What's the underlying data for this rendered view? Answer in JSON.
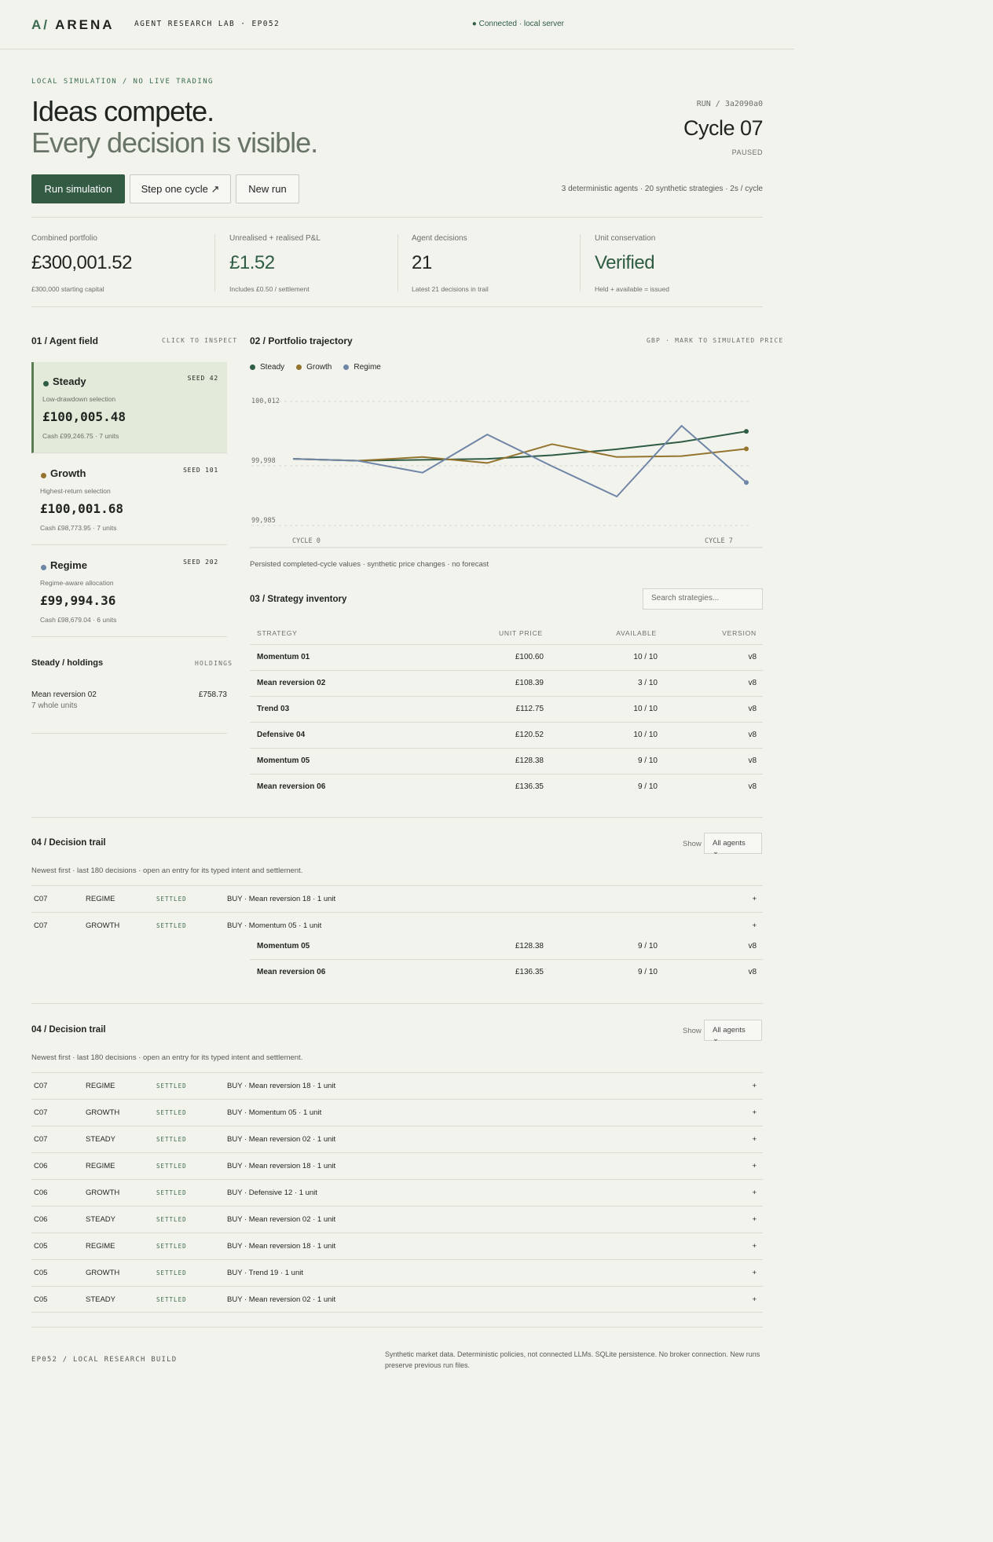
{
  "topbar": {
    "logo_mark": "A/",
    "logo_text": "ARENA",
    "lab": "AGENT RESEARCH LAB · EP052",
    "connection": "● Connected · local server"
  },
  "hero": {
    "eyebrow": "LOCAL SIMULATION / NO LIVE TRADING",
    "title_line1": "Ideas compete.",
    "title_line2": "Every decision is visible.",
    "run_id": "RUN / 3a2090a0",
    "cycle": "Cycle 07",
    "status": "PAUSED",
    "buttons": {
      "run": "Run simulation",
      "step": "Step one cycle ↗",
      "new": "New run"
    },
    "meta": "3 deterministic agents · 20 synthetic strategies · 2s / cycle"
  },
  "stats": [
    {
      "label": "Combined portfolio",
      "value": "£300,001.52",
      "sub": "£300,000 starting capital"
    },
    {
      "label": "Unrealised + realised P&L",
      "value": "£1.52",
      "sub": "Includes £0.50 / settlement"
    },
    {
      "label": "Agent decisions",
      "value": "21",
      "sub": "Latest 21 decisions in trail"
    },
    {
      "label": "Unit conservation",
      "value": "Verified",
      "sub": "Held + available = issued"
    }
  ],
  "agents": {
    "title": "01 / Agent field",
    "hint": "CLICK TO INSPECT",
    "items": [
      {
        "name": "Steady",
        "seed": "SEED 42",
        "desc": "Low-drawdown selection",
        "amount": "£100,005.48",
        "cash": "Cash £99,246.75 · 7 units",
        "color": "#2e5c45"
      },
      {
        "name": "Growth",
        "seed": "SEED 101",
        "desc": "Highest-return selection",
        "amount": "£100,001.68",
        "cash": "Cash £98,773.95 · 7 units",
        "color": "#94742f"
      },
      {
        "name": "Regime",
        "seed": "SEED 202",
        "desc": "Regime-aware allocation",
        "amount": "£99,994.36",
        "cash": "Cash £98,679.04 · 6 units",
        "color": "#6f86a6"
      }
    ]
  },
  "holdings": {
    "title": "Steady / holdings",
    "tag": "HOLDINGS",
    "name": "Mean reversion 02",
    "units": "7 whole units",
    "value": "£758.73"
  },
  "chart": {
    "title": "02 / Portfolio trajectory",
    "tag": "GBP · MARK TO SIMULATED PRICE",
    "caption": "Persisted completed-cycle values · synthetic price changes · no forecast"
  },
  "chart_data": {
    "type": "line",
    "x_start_label": "CYCLE 0",
    "x_end_label": "CYCLE 7",
    "y_ticks": [
      "100,012",
      "99,998",
      "99,985"
    ],
    "ylim": [
      99985,
      100012
    ],
    "x": [
      0,
      1,
      2,
      3,
      4,
      5,
      6,
      7
    ],
    "series": [
      {
        "name": "Steady",
        "color": "#2e5c45",
        "values": [
          99999.5,
          99999.1,
          99999.3,
          99999.5,
          100000.3,
          100001.6,
          100003.2,
          100005.48
        ]
      },
      {
        "name": "Growth",
        "color": "#94742f",
        "values": [
          99999.5,
          99999.1,
          99999.9,
          99998.6,
          100002.7,
          99999.9,
          100000.1,
          100001.68
        ]
      },
      {
        "name": "Regime",
        "color": "#6f86a6",
        "values": [
          99999.5,
          99999.1,
          99996.5,
          100004.8,
          99997.9,
          99991.3,
          100006.7,
          99994.36
        ]
      }
    ]
  },
  "inventory": {
    "title": "03 / Strategy inventory",
    "search_placeholder": "Search strategies...",
    "headers": [
      "STRATEGY",
      "UNIT PRICE",
      "AVAILABLE",
      "VERSION"
    ],
    "rows": [
      {
        "name": "Momentum 01",
        "price": "£100.60",
        "available": "10 / 10",
        "version": "v8"
      },
      {
        "name": "Mean reversion 02",
        "price": "£108.39",
        "available": "3 / 10",
        "version": "v8"
      },
      {
        "name": "Trend 03",
        "price": "£112.75",
        "available": "10 / 10",
        "version": "v8"
      },
      {
        "name": "Defensive 04",
        "price": "£120.52",
        "available": "10 / 10",
        "version": "v8"
      },
      {
        "name": "Momentum 05",
        "price": "£128.38",
        "available": "9 / 10",
        "version": "v8"
      },
      {
        "name": "Mean reversion 06",
        "price": "£136.35",
        "available": "9 / 10",
        "version": "v8"
      }
    ],
    "overlay_rows": [
      {
        "name": "Momentum 05",
        "price": "£128.38",
        "available": "9 / 10",
        "version": "v8"
      },
      {
        "name": "Mean reversion 06",
        "price": "£136.35",
        "available": "9 / 10",
        "version": "v8"
      }
    ]
  },
  "trail": {
    "title": "04 / Decision trail",
    "show_label": "Show",
    "filter": "All agents ⌄",
    "note": "Newest first · last 180 decisions · open an entry for its typed intent and settlement.",
    "first_rows": [
      {
        "cycle": "C07",
        "agent": "REGIME",
        "status": "SETTLED",
        "action": "BUY · Mean reversion 18 · 1 unit",
        "expand": "+"
      },
      {
        "cycle": "C07",
        "agent": "GROWTH",
        "status": "SETTLED",
        "action": "BUY · Momentum 05 · 1 unit",
        "expand": "+"
      }
    ],
    "rows": [
      {
        "cycle": "C07",
        "agent": "REGIME",
        "status": "SETTLED",
        "action": "BUY · Mean reversion 18 · 1 unit",
        "expand": "+"
      },
      {
        "cycle": "C07",
        "agent": "GROWTH",
        "status": "SETTLED",
        "action": "BUY · Momentum 05 · 1 unit",
        "expand": "+"
      },
      {
        "cycle": "C07",
        "agent": "STEADY",
        "status": "SETTLED",
        "action": "BUY · Mean reversion 02 · 1 unit",
        "expand": "+"
      },
      {
        "cycle": "C06",
        "agent": "REGIME",
        "status": "SETTLED",
        "action": "BUY · Mean reversion 18 · 1 unit",
        "expand": "+"
      },
      {
        "cycle": "C06",
        "agent": "GROWTH",
        "status": "SETTLED",
        "action": "BUY · Defensive 12 · 1 unit",
        "expand": "+"
      },
      {
        "cycle": "C06",
        "agent": "STEADY",
        "status": "SETTLED",
        "action": "BUY · Mean reversion 02 · 1 unit",
        "expand": "+"
      },
      {
        "cycle": "C05",
        "agent": "REGIME",
        "status": "SETTLED",
        "action": "BUY · Mean reversion 18 · 1 unit",
        "expand": "+"
      },
      {
        "cycle": "C05",
        "agent": "GROWTH",
        "status": "SETTLED",
        "action": "BUY · Trend 19 · 1 unit",
        "expand": "+"
      },
      {
        "cycle": "C05",
        "agent": "STEADY",
        "status": "SETTLED",
        "action": "BUY · Mean reversion 02 · 1 unit",
        "expand": "+"
      }
    ]
  },
  "footer": {
    "left": "EP052 / LOCAL RESEARCH BUILD",
    "right": "Synthetic market data. Deterministic policies, not connected LLMs. SQLite persistence. No broker connection. New runs preserve previous run files."
  }
}
